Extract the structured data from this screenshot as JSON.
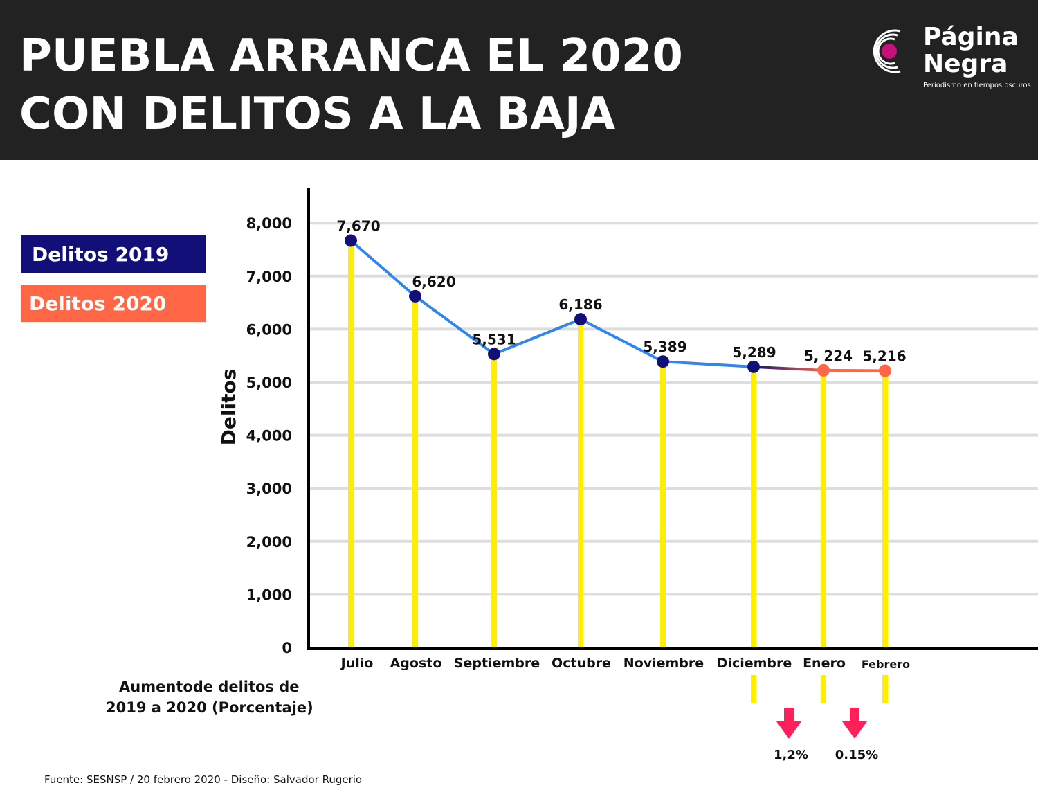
{
  "header": {
    "title_line1": "PUEBLA ARRANCA EL 2020",
    "title_line2": "CON DELITOS A LA BAJA",
    "logo": {
      "word1": "Página",
      "word2": "Negra",
      "tagline": "Periodismo en tiempos oscuros"
    }
  },
  "legend": {
    "label_2019": "Delitos 2019",
    "label_2020": "Delitos 2020"
  },
  "colors": {
    "header_bg": "#222222",
    "series_2019": "#120f78",
    "series_2020": "#ff6645",
    "line": "#2f86f0",
    "stems": "#ffee00",
    "arrows": "#ff1f5a",
    "grid": "#dddddd"
  },
  "chart_data": {
    "type": "line",
    "title": "",
    "xlabel": "",
    "ylabel": "Delitos",
    "ylim": [
      0,
      8000
    ],
    "yticks": [
      0,
      1000,
      2000,
      3000,
      4000,
      5000,
      6000,
      7000,
      8000
    ],
    "ytick_labels": [
      "0",
      "1,000",
      "2,000",
      "3,000",
      "4,000",
      "5,000",
      "6,000",
      "7,000",
      "8,000"
    ],
    "categories": [
      "Julio",
      "Agosto",
      "Septiembre",
      "Octubre",
      "Noviembre",
      "Diciembre",
      "Enero",
      "Febrero"
    ],
    "values": [
      7670,
      6620,
      5531,
      6186,
      5389,
      5289,
      5224,
      5216
    ],
    "data_labels": [
      "7,670",
      "6,620",
      "5,531",
      "6,186",
      "5,389",
      "5,289",
      "5, 224",
      "5,216"
    ],
    "point_series": [
      "2019",
      "2019",
      "2019",
      "2019",
      "2019",
      "2019",
      "2020",
      "2020"
    ],
    "grid": true,
    "legend_position": "left"
  },
  "percent_change": {
    "title_line1": "Aumentode delitos de",
    "title_line2": "2019 a 2020 (Porcentaje)",
    "items": [
      {
        "value": "1,2%",
        "direction": "down"
      },
      {
        "value": "0.15%",
        "direction": "down"
      }
    ]
  },
  "source": "Fuente: SESNSP / 20 febrero 2020 - Diseño: Salvador Rugerio"
}
